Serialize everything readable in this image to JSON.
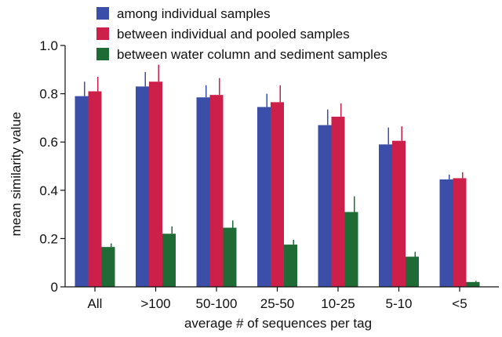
{
  "chart_data": {
    "type": "bar",
    "title": "",
    "xlabel": "average # of sequences per tag",
    "ylabel": "mean similarity value",
    "ylim": [
      0,
      1.0
    ],
    "yticks": [
      "0",
      "0.2",
      "0.4",
      "0.6",
      "0.8",
      "1.0"
    ],
    "categories": [
      "All",
      ">100",
      "50-100",
      "25-50",
      "10-25",
      "5-10",
      "<5"
    ],
    "legend_position": "top",
    "grid": false,
    "series": [
      {
        "name": "among individual samples",
        "color": "#3b4ea8",
        "values": [
          0.79,
          0.83,
          0.785,
          0.745,
          0.67,
          0.59,
          0.445
        ],
        "errors": [
          0.06,
          0.06,
          0.05,
          0.055,
          0.065,
          0.07,
          0.02
        ]
      },
      {
        "name": "between individual and pooled samples",
        "color": "#cc1f4a",
        "values": [
          0.81,
          0.85,
          0.795,
          0.765,
          0.705,
          0.605,
          0.45
        ],
        "errors": [
          0.06,
          0.07,
          0.07,
          0.07,
          0.055,
          0.06,
          0.025
        ]
      },
      {
        "name": "between water column and sediment samples",
        "color": "#1f6b35",
        "values": [
          0.165,
          0.22,
          0.245,
          0.175,
          0.31,
          0.125,
          0.02
        ],
        "errors": [
          0.015,
          0.03,
          0.03,
          0.02,
          0.065,
          0.02,
          0.005
        ]
      }
    ]
  }
}
